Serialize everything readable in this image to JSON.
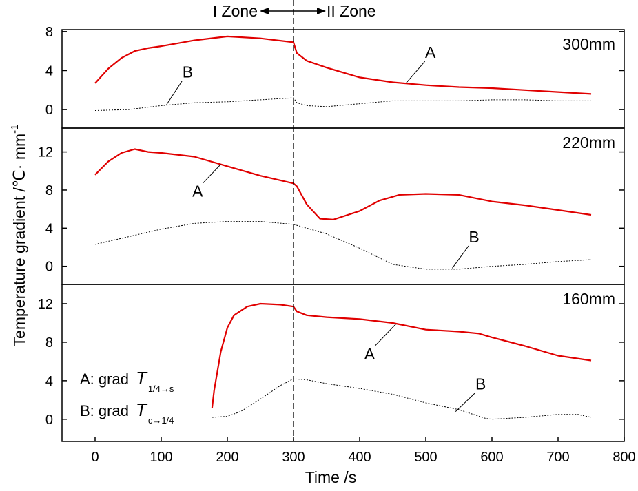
{
  "chart_data": {
    "type": "line",
    "xlabel": "Time /s",
    "ylabel": "Temperature gradient /℃· mm",
    "ylabel_sup": "-1",
    "xlim": [
      -50,
      800
    ],
    "xticks": [
      "0",
      "100",
      "200",
      "300",
      "400",
      "500",
      "600",
      "700",
      "800"
    ],
    "zone_divider_x": 300,
    "zones": {
      "left": "I Zone",
      "right": "II Zone"
    },
    "legend": {
      "A": {
        "prefix": "A: grad",
        "symbol": "T",
        "subscript": "1/4→s"
      },
      "B": {
        "prefix": "B: grad",
        "symbol": "T",
        "subscript": "c→1/4"
      }
    },
    "panels": [
      {
        "label": "300mm",
        "ylim": [
          -1.9,
          8.2
        ],
        "yticks": [
          "0",
          "4",
          "8"
        ],
        "series": [
          {
            "name": "A",
            "style": "solid",
            "color": "#e00000",
            "points": [
              [
                0,
                2.7
              ],
              [
                20,
                4.2
              ],
              [
                40,
                5.3
              ],
              [
                60,
                6.0
              ],
              [
                80,
                6.3
              ],
              [
                100,
                6.5
              ],
              [
                150,
                7.1
              ],
              [
                200,
                7.5
              ],
              [
                250,
                7.3
              ],
              [
                300,
                6.9
              ],
              [
                305,
                5.8
              ],
              [
                320,
                5.0
              ],
              [
                350,
                4.3
              ],
              [
                400,
                3.3
              ],
              [
                450,
                2.8
              ],
              [
                500,
                2.5
              ],
              [
                550,
                2.3
              ],
              [
                600,
                2.2
              ],
              [
                650,
                2.0
              ],
              [
                700,
                1.8
              ],
              [
                750,
                1.6
              ]
            ]
          },
          {
            "name": "B",
            "style": "dotted",
            "color": "#000000",
            "points": [
              [
                0,
                -0.1
              ],
              [
                50,
                0.0
              ],
              [
                100,
                0.4
              ],
              [
                150,
                0.7
              ],
              [
                200,
                0.8
              ],
              [
                250,
                1.0
              ],
              [
                300,
                1.2
              ],
              [
                305,
                0.7
              ],
              [
                320,
                0.4
              ],
              [
                350,
                0.3
              ],
              [
                400,
                0.6
              ],
              [
                450,
                0.9
              ],
              [
                500,
                0.9
              ],
              [
                550,
                0.9
              ],
              [
                600,
                1.0
              ],
              [
                650,
                1.0
              ],
              [
                700,
                0.9
              ],
              [
                750,
                0.9
              ]
            ]
          }
        ],
        "curve_labels": [
          {
            "text": "A",
            "x": 507,
            "y": 5.3,
            "leader_to": [
              470,
              2.7
            ]
          },
          {
            "text": "B",
            "x": 140,
            "y": 3.3,
            "leader_to": [
              108,
              0.5
            ]
          }
        ]
      },
      {
        "label": "220mm",
        "ylim": [
          -1.9,
          14.5
        ],
        "yticks": [
          "0",
          "4",
          "8",
          "12"
        ],
        "series": [
          {
            "name": "A",
            "style": "solid",
            "color": "#e00000",
            "points": [
              [
                0,
                9.6
              ],
              [
                20,
                11.0
              ],
              [
                40,
                11.9
              ],
              [
                60,
                12.3
              ],
              [
                80,
                12.0
              ],
              [
                100,
                11.9
              ],
              [
                150,
                11.5
              ],
              [
                200,
                10.5
              ],
              [
                250,
                9.5
              ],
              [
                300,
                8.7
              ],
              [
                305,
                8.4
              ],
              [
                320,
                6.5
              ],
              [
                340,
                5.0
              ],
              [
                360,
                4.9
              ],
              [
                400,
                5.8
              ],
              [
                430,
                6.9
              ],
              [
                460,
                7.5
              ],
              [
                500,
                7.6
              ],
              [
                550,
                7.5
              ],
              [
                600,
                6.8
              ],
              [
                650,
                6.4
              ],
              [
                700,
                5.9
              ],
              [
                750,
                5.4
              ]
            ]
          },
          {
            "name": "B",
            "style": "dotted",
            "color": "#000000",
            "points": [
              [
                0,
                2.3
              ],
              [
                50,
                3.1
              ],
              [
                100,
                3.9
              ],
              [
                150,
                4.5
              ],
              [
                200,
                4.7
              ],
              [
                250,
                4.7
              ],
              [
                300,
                4.4
              ],
              [
                350,
                3.4
              ],
              [
                400,
                1.9
              ],
              [
                450,
                0.2
              ],
              [
                500,
                -0.3
              ],
              [
                550,
                -0.3
              ],
              [
                600,
                0.0
              ],
              [
                650,
                0.2
              ],
              [
                700,
                0.5
              ],
              [
                750,
                0.7
              ]
            ]
          }
        ],
        "curve_labels": [
          {
            "text": "A",
            "x": 155,
            "y": 7.3,
            "leader_to": [
              190,
              10.7
            ]
          },
          {
            "text": "B",
            "x": 573,
            "y": 2.5,
            "leader_to": [
              540,
              -0.2
            ]
          }
        ]
      },
      {
        "label": "160mm",
        "ylim": [
          -2.3,
          14.0
        ],
        "yticks": [
          "0",
          "4",
          "8",
          "12"
        ],
        "series": [
          {
            "name": "A",
            "style": "solid",
            "color": "#e00000",
            "points": [
              [
                177,
                1.2
              ],
              [
                180,
                3.0
              ],
              [
                190,
                7.0
              ],
              [
                200,
                9.5
              ],
              [
                210,
                10.8
              ],
              [
                230,
                11.7
              ],
              [
                250,
                12.0
              ],
              [
                280,
                11.9
              ],
              [
                300,
                11.7
              ],
              [
                305,
                11.2
              ],
              [
                320,
                10.8
              ],
              [
                350,
                10.6
              ],
              [
                400,
                10.4
              ],
              [
                450,
                10.0
              ],
              [
                500,
                9.3
              ],
              [
                550,
                9.1
              ],
              [
                580,
                8.9
              ],
              [
                600,
                8.5
              ],
              [
                650,
                7.6
              ],
              [
                700,
                6.6
              ],
              [
                750,
                6.1
              ]
            ]
          },
          {
            "name": "B",
            "style": "dotted",
            "color": "#000000",
            "points": [
              [
                177,
                0.2
              ],
              [
                200,
                0.3
              ],
              [
                220,
                0.8
              ],
              [
                250,
                2.1
              ],
              [
                280,
                3.5
              ],
              [
                300,
                4.2
              ],
              [
                320,
                4.1
              ],
              [
                350,
                3.7
              ],
              [
                400,
                3.2
              ],
              [
                450,
                2.6
              ],
              [
                500,
                1.7
              ],
              [
                550,
                1.0
              ],
              [
                590,
                0.1
              ],
              [
                600,
                0.0
              ],
              [
                650,
                0.2
              ],
              [
                700,
                0.5
              ],
              [
                730,
                0.5
              ],
              [
                750,
                0.2
              ]
            ]
          }
        ],
        "curve_labels": [
          {
            "text": "A",
            "x": 415,
            "y": 6.2,
            "leader_to": [
              455,
              9.9
            ]
          },
          {
            "text": "B",
            "x": 583,
            "y": 3.1,
            "leader_to": [
              545,
              0.8
            ]
          }
        ]
      }
    ]
  }
}
